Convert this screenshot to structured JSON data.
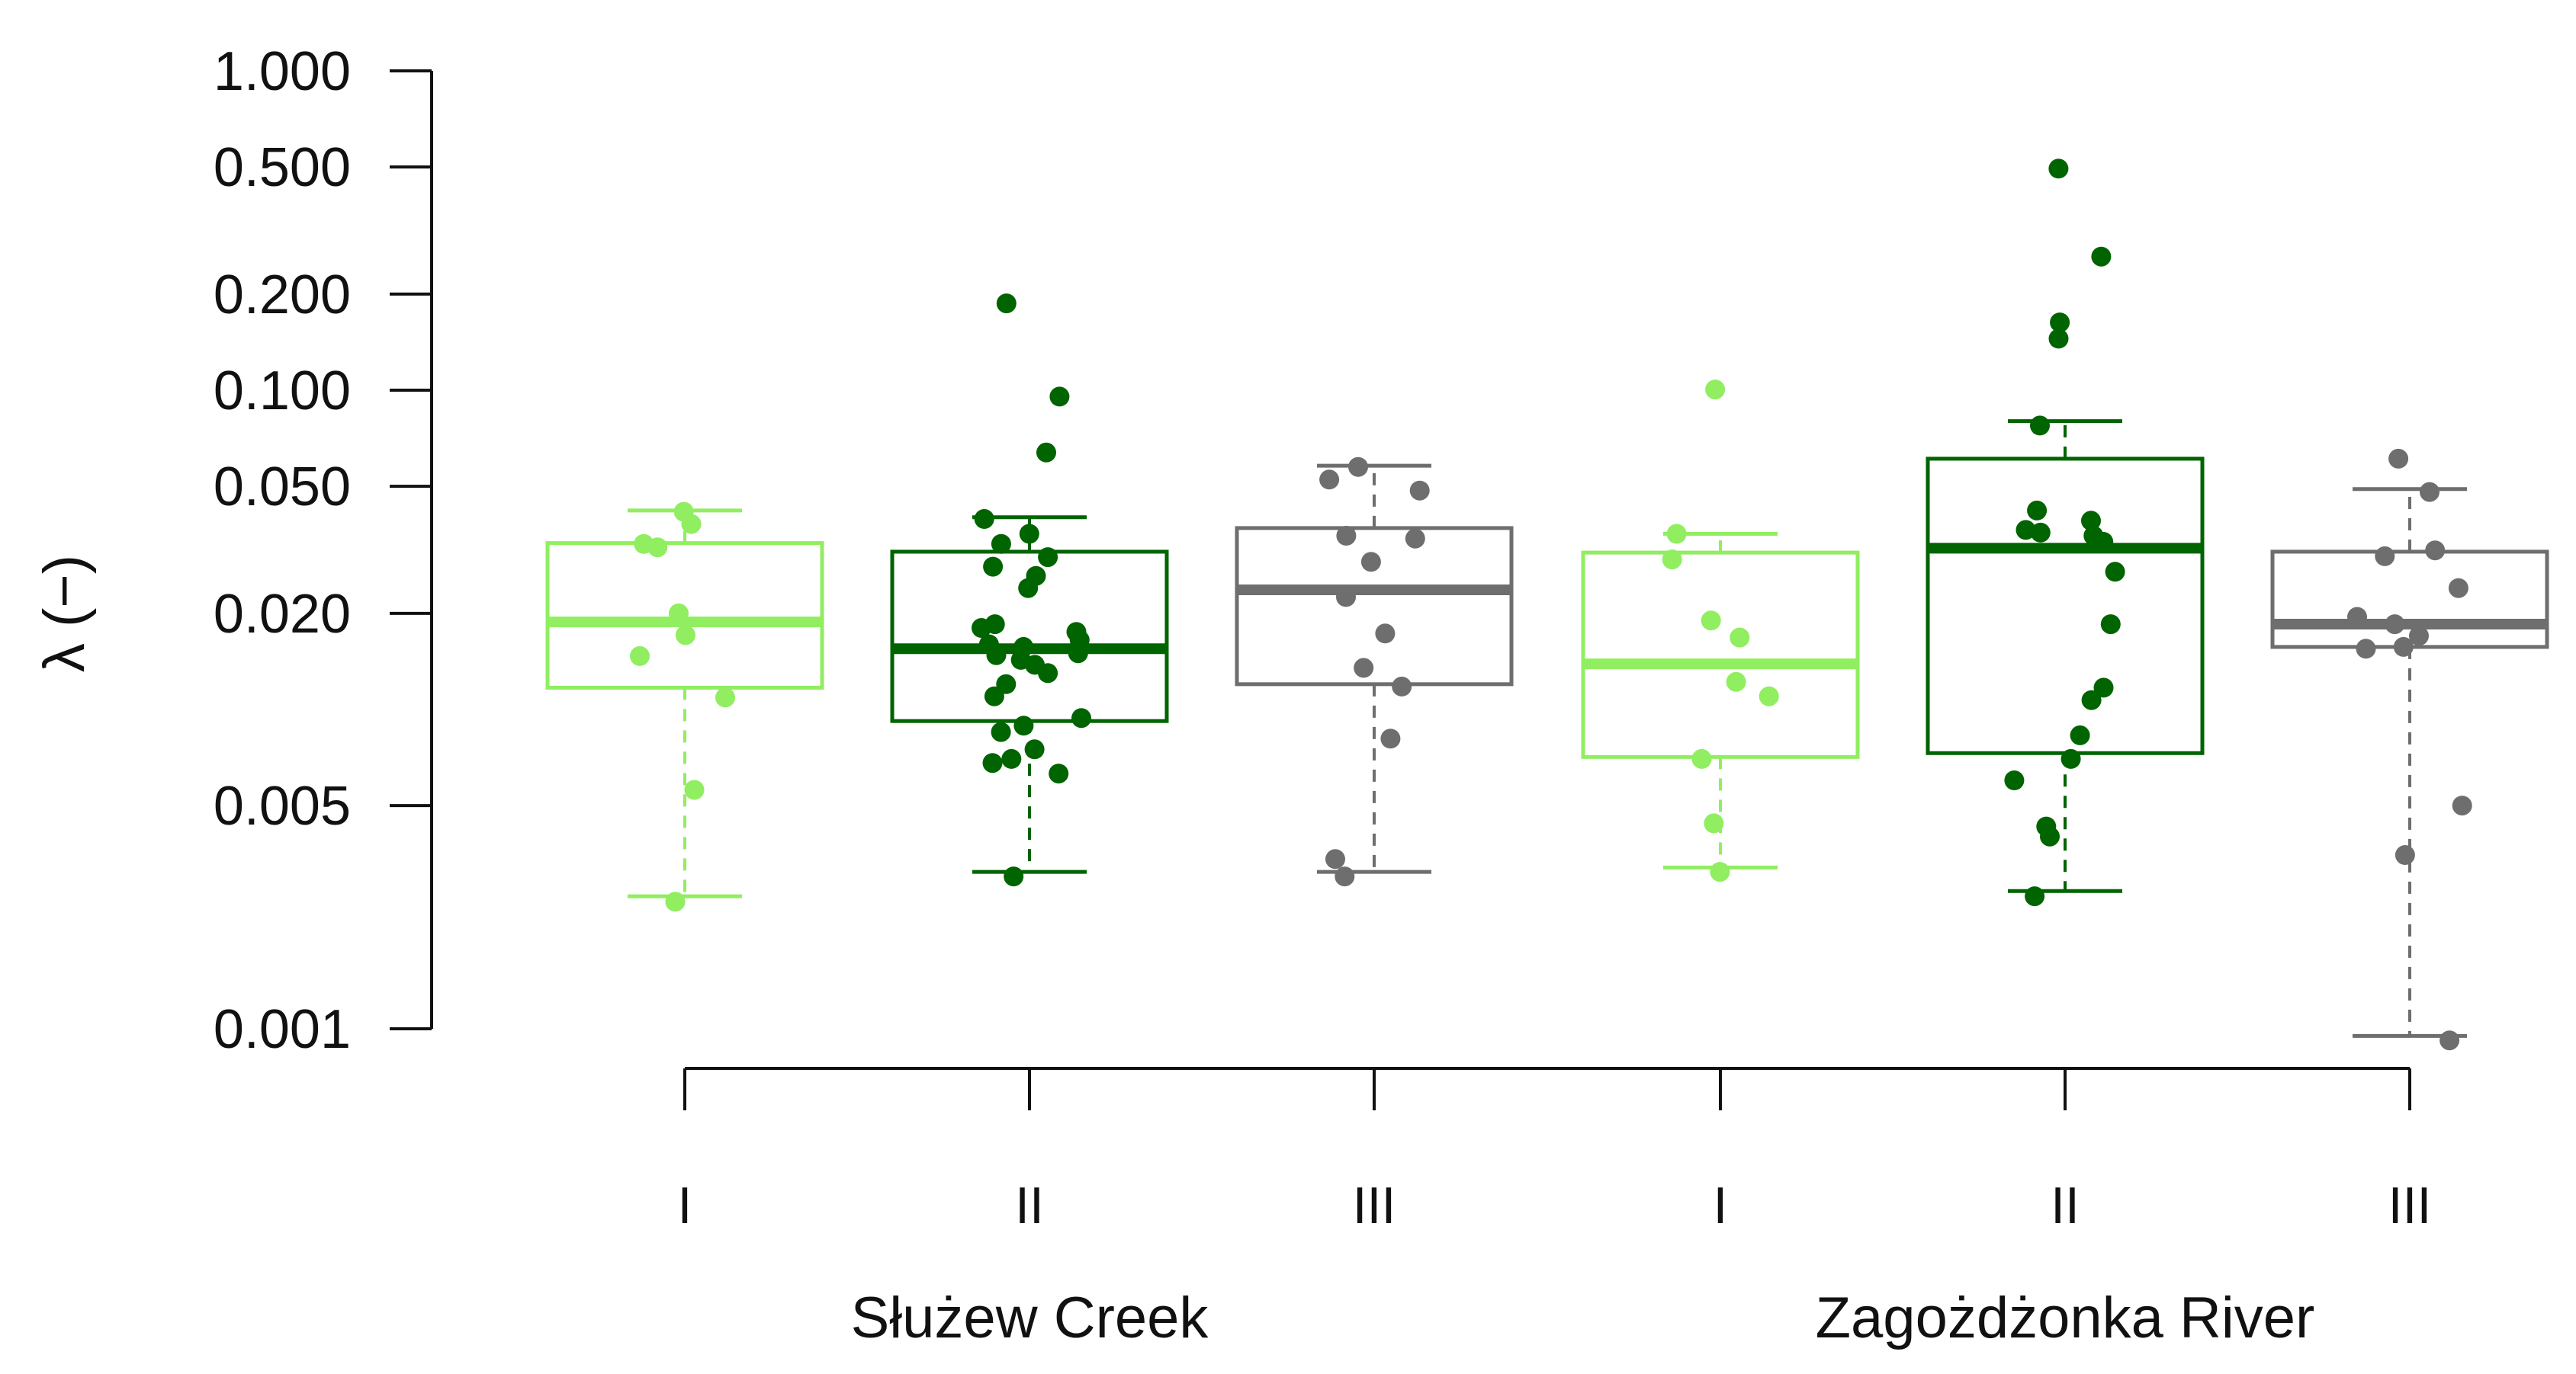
{
  "chart_data": {
    "type": "boxplot",
    "title": "",
    "xlabel": "",
    "ylabel": "λ (−)",
    "yscale": "log",
    "ylim": [
      0.001,
      1.0
    ],
    "y_ticks": [
      1.0,
      0.5,
      0.2,
      0.1,
      0.05,
      0.02,
      0.005,
      0.001
    ],
    "y_tick_labels": [
      "1.000",
      "0.500",
      "0.200",
      "0.100",
      "0.050",
      "0.020",
      "0.005",
      "0.001"
    ],
    "groups": [
      {
        "name": "Służew Creek",
        "categories": [
          "I",
          "II",
          "III"
        ]
      },
      {
        "name": "Zagożdżonka River",
        "categories": [
          "I",
          "II",
          "III"
        ]
      }
    ],
    "colors": {
      "I": "#90ee60",
      "II": "#006400",
      "III": "#6e6e6e",
      "axis": "#111111"
    },
    "series": [
      {
        "group": "Służew Creek",
        "category": "I",
        "color_key": "I",
        "whisker_low": 0.0026,
        "q1": 0.0117,
        "median": 0.0188,
        "q3": 0.0332,
        "whisker_high": 0.042,
        "points": [
          0.0416,
          0.0381,
          0.033,
          0.0322,
          0.02,
          0.0171,
          0.0147,
          0.0109,
          0.0056,
          0.0025
        ]
      },
      {
        "group": "Służew Creek",
        "category": "II",
        "color_key": "II",
        "whisker_low": 0.0031,
        "q1": 0.0092,
        "median": 0.0155,
        "q3": 0.0312,
        "whisker_high": 0.04,
        "points": [
          0.187,
          0.0955,
          0.0638,
          0.0395,
          0.0355,
          0.033,
          0.03,
          0.028,
          0.0262,
          0.024,
          0.0185,
          0.018,
          0.0175,
          0.0165,
          0.016,
          0.0157,
          0.015,
          0.0148,
          0.0143,
          0.0138,
          0.013,
          0.012,
          0.011,
          0.0094,
          0.0089,
          0.0085,
          0.0075,
          0.007,
          0.0068,
          0.0063,
          0.003
        ]
      },
      {
        "group": "Służew Creek",
        "category": "III",
        "color_key": "III",
        "whisker_low": 0.0031,
        "q1": 0.012,
        "median": 0.0237,
        "q3": 0.037,
        "whisker_high": 0.058,
        "points": [
          0.0575,
          0.0525,
          0.0485,
          0.035,
          0.0343,
          0.029,
          0.0225,
          0.0173,
          0.0135,
          0.0118,
          0.0081,
          0.0034,
          0.003
        ]
      },
      {
        "group": "Zagożdżonka River",
        "category": "I",
        "color_key": "I",
        "whisker_low": 0.0032,
        "q1": 0.0071,
        "median": 0.0139,
        "q3": 0.031,
        "whisker_high": 0.0355,
        "points": [
          0.1005,
          0.0355,
          0.0295,
          0.019,
          0.0168,
          0.0122,
          0.011,
          0.007,
          0.0044,
          0.0031
        ]
      },
      {
        "group": "Zagożdżonka River",
        "category": "II",
        "color_key": "II",
        "whisker_low": 0.0027,
        "q1": 0.0073,
        "median": 0.032,
        "q3": 0.061,
        "whisker_high": 0.08,
        "points": [
          0.494,
          0.262,
          0.163,
          0.145,
          0.0775,
          0.042,
          0.039,
          0.0365,
          0.0358,
          0.035,
          0.0335,
          0.027,
          0.0185,
          0.0117,
          0.0107,
          0.0083,
          0.007,
          0.006,
          0.0043,
          0.004,
          0.0026
        ]
      },
      {
        "group": "Zagożdżonka River",
        "category": "III",
        "color_key": "III",
        "whisker_low": 0.00095,
        "q1": 0.0157,
        "median": 0.0185,
        "q3": 0.0312,
        "whisker_high": 0.049,
        "points": [
          0.061,
          0.048,
          0.0315,
          0.0302,
          0.024,
          0.0195,
          0.0185,
          0.017,
          0.0157,
          0.0155,
          0.005,
          0.0035,
          0.00092
        ]
      }
    ]
  }
}
